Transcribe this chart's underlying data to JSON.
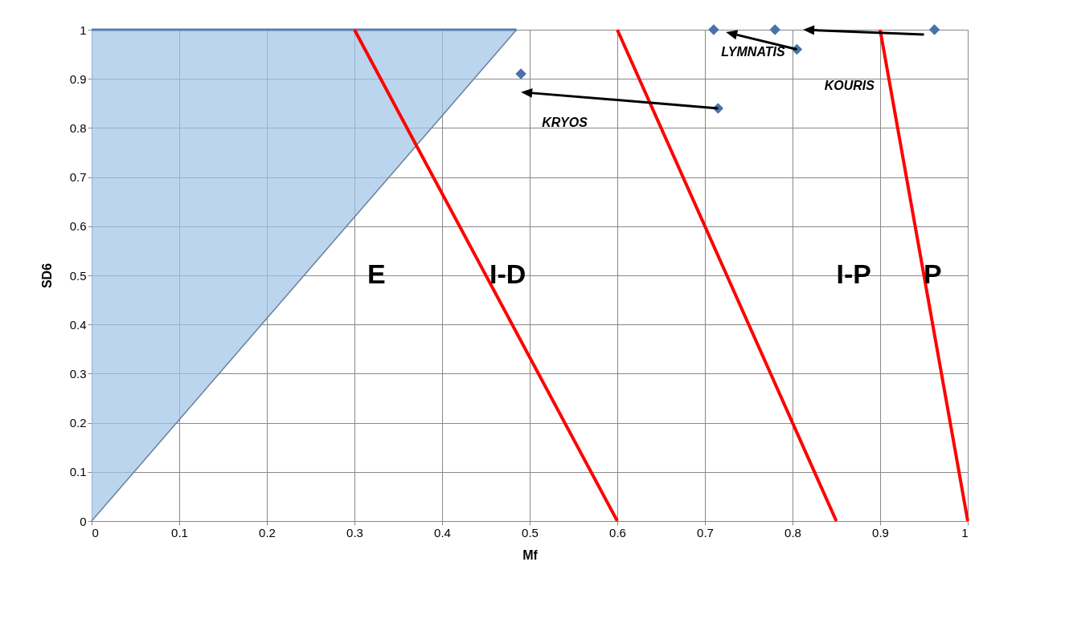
{
  "chart_data": {
    "type": "scatter",
    "xlabel": "Mf",
    "ylabel": "SD6",
    "xlim": [
      0,
      1
    ],
    "ylim": [
      0,
      1
    ],
    "xticks": [
      0,
      0.1,
      0.2,
      0.3,
      0.4,
      0.5,
      0.6,
      0.7,
      0.8,
      0.9,
      1
    ],
    "yticks": [
      0,
      0.1,
      0.2,
      0.3,
      0.4,
      0.5,
      0.6,
      0.7,
      0.8,
      0.9,
      1
    ],
    "grid": true,
    "series": [
      {
        "type": "line",
        "color": "#6a7f99",
        "x": [
          0,
          0.485
        ],
        "values": [
          0,
          1
        ],
        "lower": [
          0,
          1
        ],
        "upper": [
          1,
          1
        ]
      },
      {
        "type": "line",
        "color": "#ff0000",
        "x": [
          0.3,
          0.6
        ],
        "values": [
          1,
          0
        ]
      },
      {
        "type": "line",
        "color": "#ff0000",
        "x": [
          0.6,
          0.85
        ],
        "values": [
          1,
          0
        ]
      },
      {
        "type": "line",
        "color": "#ff0000",
        "x": [
          0.9,
          1
        ],
        "values": [
          1,
          0
        ]
      },
      {
        "marker": "diamond",
        "color": "#4a72a8",
        "x": [
          0.49,
          0.715,
          0.71,
          0.78,
          0.805,
          0.962
        ],
        "values": [
          0.91,
          0.84,
          1,
          1,
          0.96,
          1
        ]
      }
    ],
    "annotations": [
      "E",
      "I-D",
      "I-P",
      "P",
      "KRYOS",
      "LYMNATIS",
      "KOURIS"
    ]
  }
}
